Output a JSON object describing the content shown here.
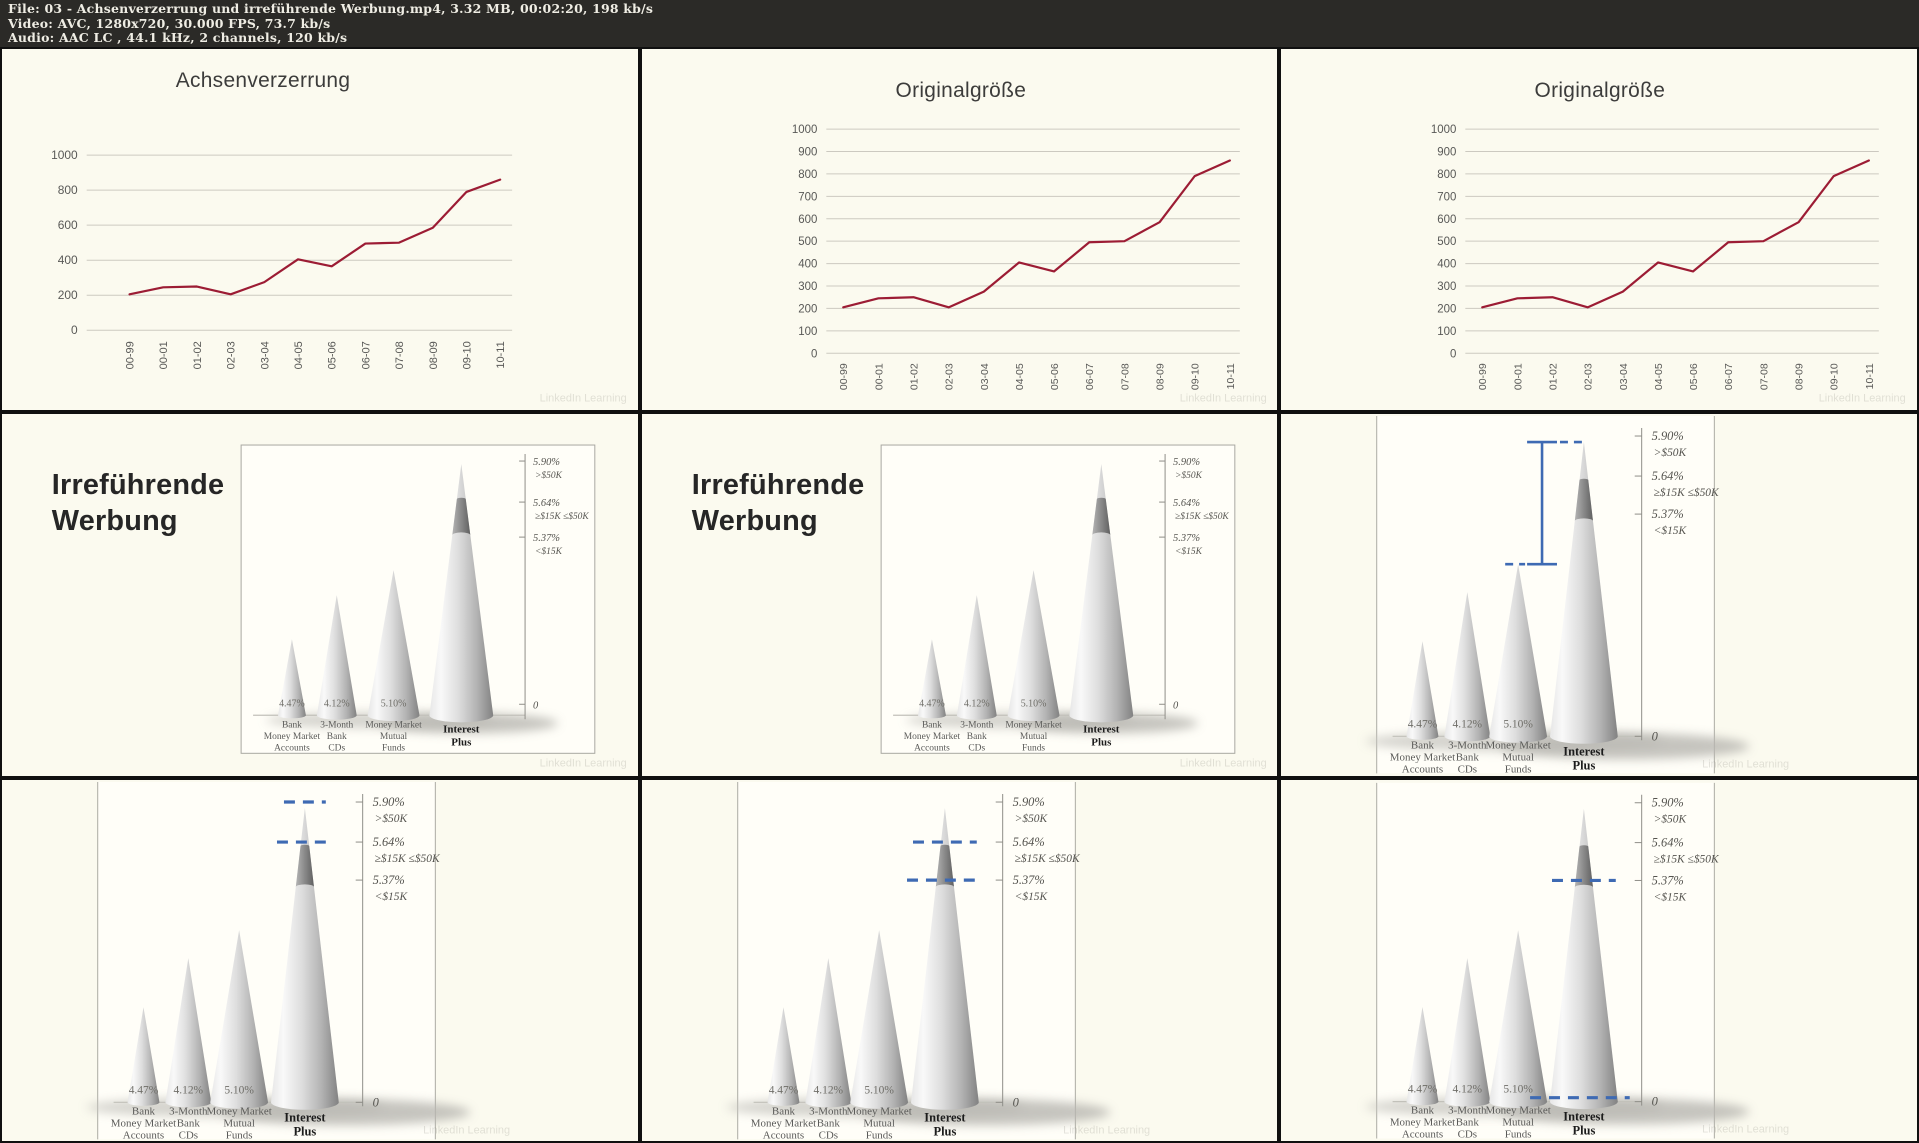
{
  "header": {
    "lines": [
      "File: 03 - Achsenverzerrung und irreführende Werbung.mp4, 3.32 MB, 00:02:20, 198 kb/s",
      "Video: AVC, 1280x720, 30.000 FPS, 73.7 kb/s",
      "Audio: AAC LC , 44.1 kHz, 2 channels, 120 kb/s"
    ]
  },
  "slide": {
    "title_lines": [
      "Irreführende",
      "Werbung"
    ]
  },
  "watermark": "LinkedIn Learning",
  "colors": {
    "header_bg": "#2b2a27",
    "frame_bg": "#fbfaef",
    "image_bg": "#fffef8",
    "line_maroon": "#9c1c34",
    "gridline": "#ccc9c0",
    "axis_text": "#595957",
    "title_text": "#3c3c3b",
    "slide_title_text": "#262626",
    "annotation_blue": "#3e6ab3",
    "cone_text": "#5a5a58",
    "cone_bold_text": "#1c1c1c"
  },
  "chart_data": [
    {
      "type": "line",
      "title": "Achsenverzerrung",
      "x": [
        "00-99",
        "00-01",
        "01-02",
        "02-03",
        "03-04",
        "04-05",
        "05-06",
        "06-07",
        "07-08",
        "08-09",
        "09-10",
        "10-11"
      ],
      "values": [
        205,
        245,
        250,
        205,
        275,
        405,
        365,
        495,
        500,
        585,
        790,
        860
      ],
      "ylim": [
        0,
        1000
      ],
      "ytick_step": 200,
      "grid": true,
      "legend": "none",
      "note": "same data as Originalgröße but plotted on a stretched (distorted) axis"
    },
    {
      "type": "line",
      "title": "Originalgröße",
      "x": [
        "00-99",
        "00-01",
        "01-02",
        "02-03",
        "03-04",
        "04-05",
        "05-06",
        "06-07",
        "07-08",
        "08-09",
        "09-10",
        "10-11"
      ],
      "values": [
        205,
        245,
        250,
        205,
        275,
        405,
        365,
        495,
        500,
        585,
        790,
        860
      ],
      "ylim": [
        0,
        1000
      ],
      "ytick_step": 100,
      "grid": true,
      "legend": "none",
      "note": "shown identically in thumbnail frames 2 and 3"
    },
    {
      "type": "bar",
      "variant": "3d-cone",
      "title": "Irreführende Werbung (bank interest cone chart)",
      "categories": [
        [
          "Bank",
          "Money Market",
          "Accounts"
        ],
        [
          "3-Month",
          "Bank",
          "CDs"
        ],
        [
          "Money Market",
          "Mutual",
          "Funds"
        ],
        [
          "Interest",
          "Plus"
        ]
      ],
      "values": [
        4.47,
        4.12,
        5.1,
        5.9
      ],
      "value_labels": [
        "4.47%",
        "4.12%",
        "5.10%",
        ""
      ],
      "right_axis_ticks": [
        {
          "rate": "5.90%",
          "range": ">$50K"
        },
        {
          "rate": "5.64%",
          "range": "≥$15K ≤$50K"
        },
        {
          "rate": "5.37%",
          "range": "<$15K"
        }
      ],
      "zero_label": "0",
      "highlight_category": "Interest Plus"
    }
  ]
}
